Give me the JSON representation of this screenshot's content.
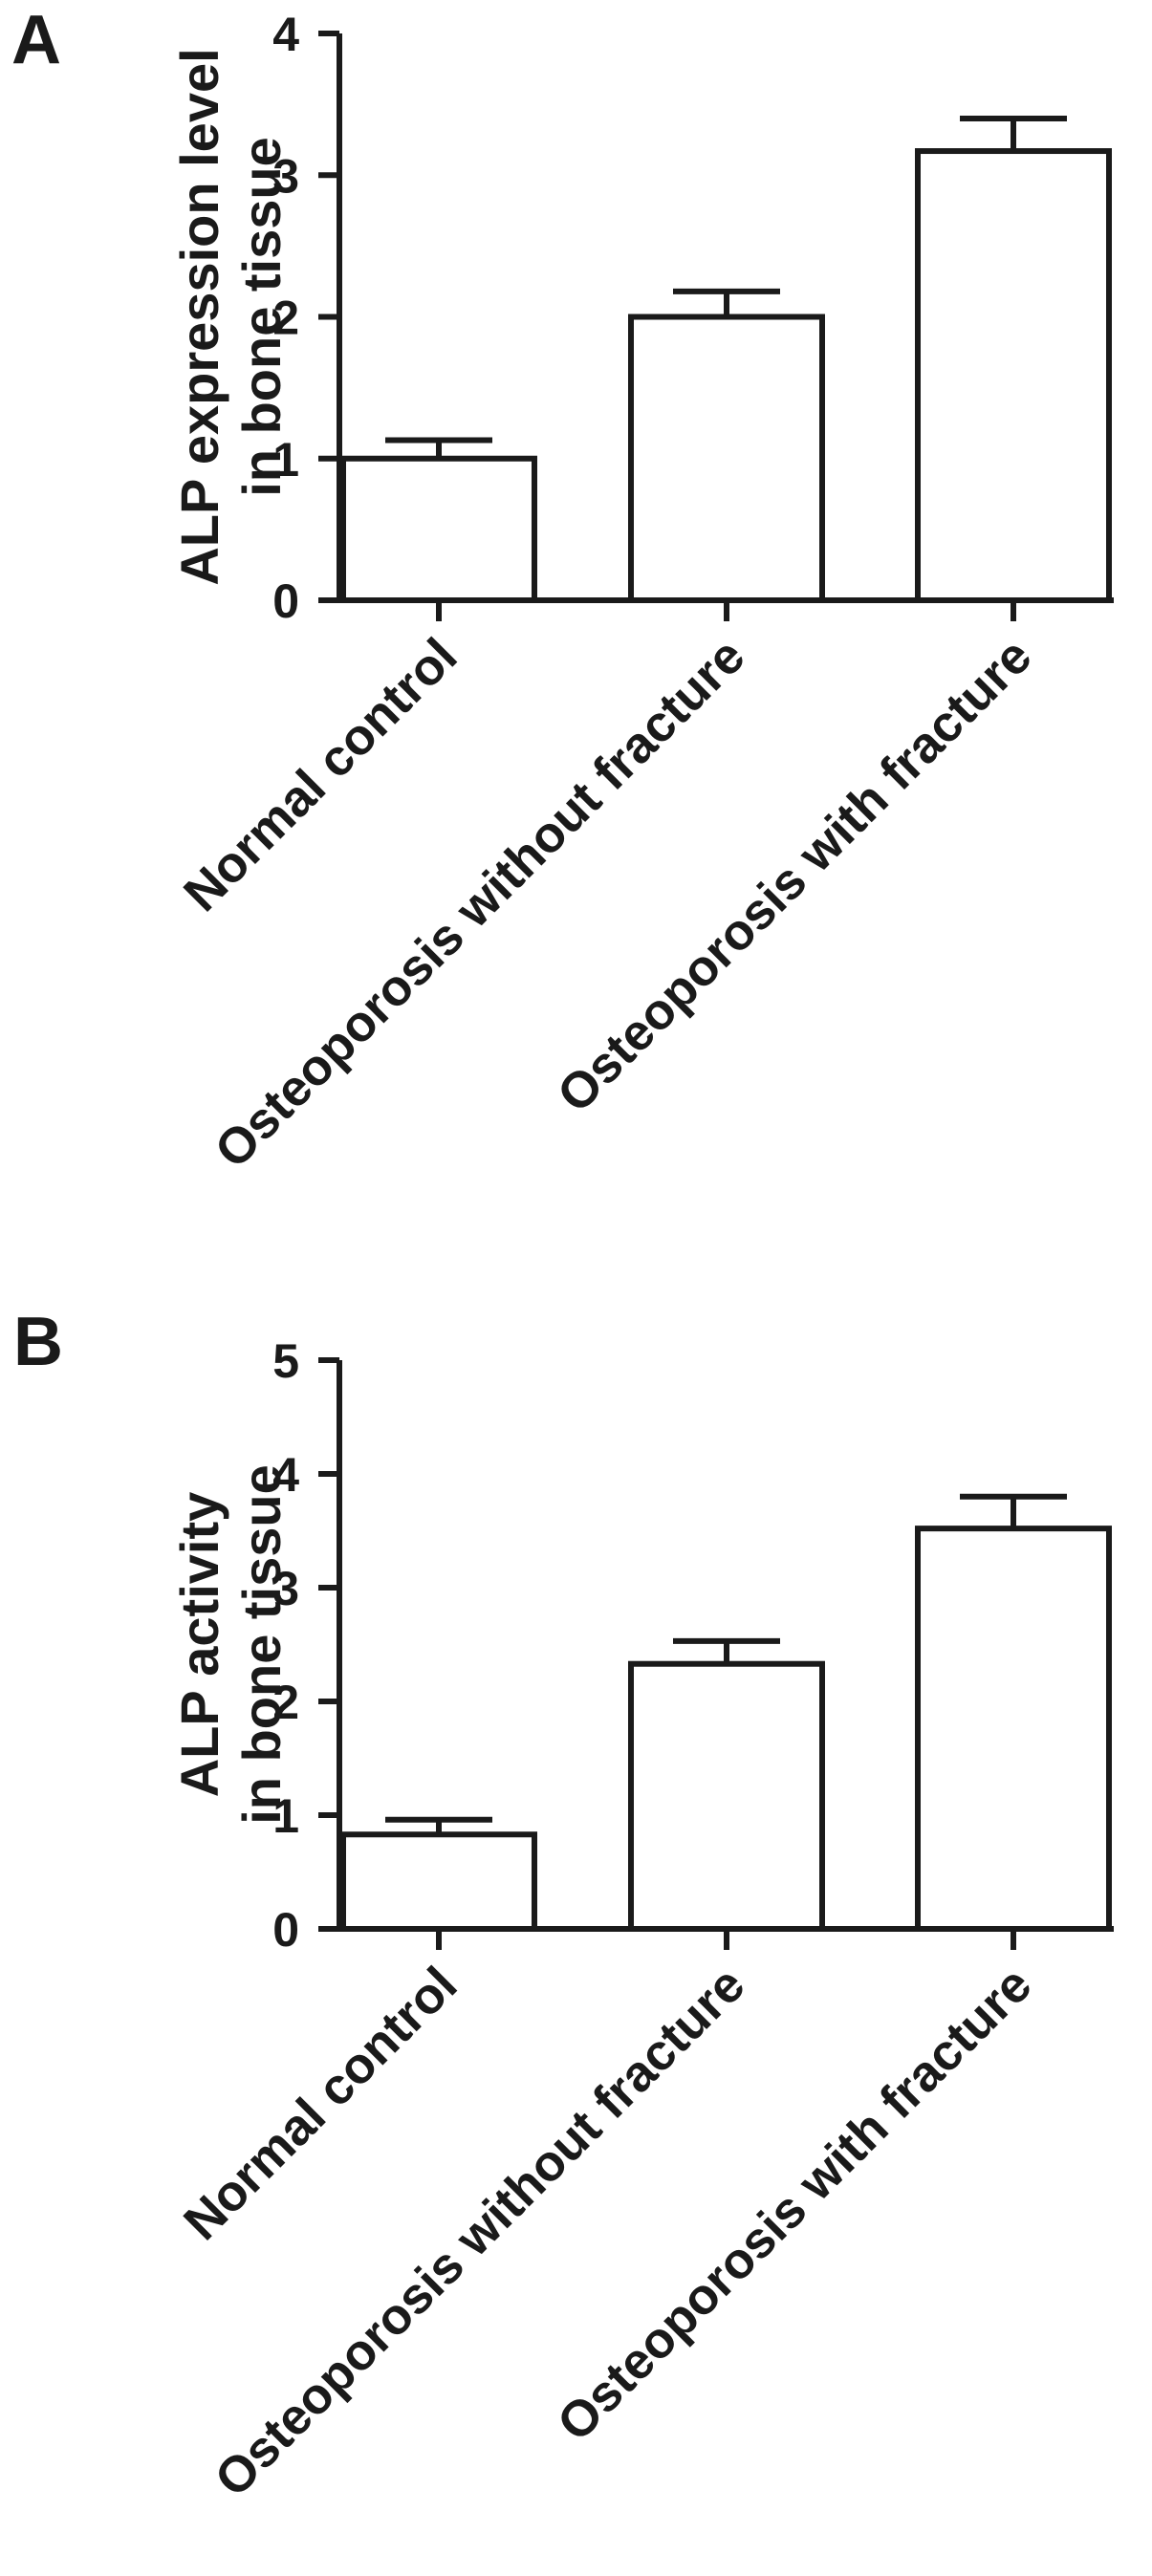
{
  "chart_data": [
    {
      "type": "bar",
      "panel": "A",
      "categories": [
        "Normal control",
        "Osteoporosis without fracture",
        "Osteoporosis with fracture"
      ],
      "values": [
        1.0,
        2.0,
        3.17
      ],
      "error_upper": [
        0.13,
        0.18,
        0.23
      ],
      "ylabel": [
        "ALP expression level",
        "in bone tissue"
      ],
      "ylim": [
        0,
        4
      ],
      "yticks": [
        0,
        1,
        2,
        3,
        4
      ],
      "grid": false,
      "legend": "none",
      "bar_fill": "#ffffff",
      "bar_stroke": "#1a1a1a"
    },
    {
      "type": "bar",
      "panel": "B",
      "categories": [
        "Normal control",
        "Osteoporosis without fracture",
        "Osteoporosis with fracture"
      ],
      "values": [
        0.83,
        2.33,
        3.52
      ],
      "error_upper": [
        0.13,
        0.2,
        0.28
      ],
      "ylabel": [
        "ALP activity",
        "in bone tissue"
      ],
      "ylim": [
        0,
        5
      ],
      "yticks": [
        0,
        1,
        2,
        3,
        4,
        5
      ],
      "grid": false,
      "legend": "none",
      "bar_fill": "#ffffff",
      "bar_stroke": "#1a1a1a"
    }
  ]
}
